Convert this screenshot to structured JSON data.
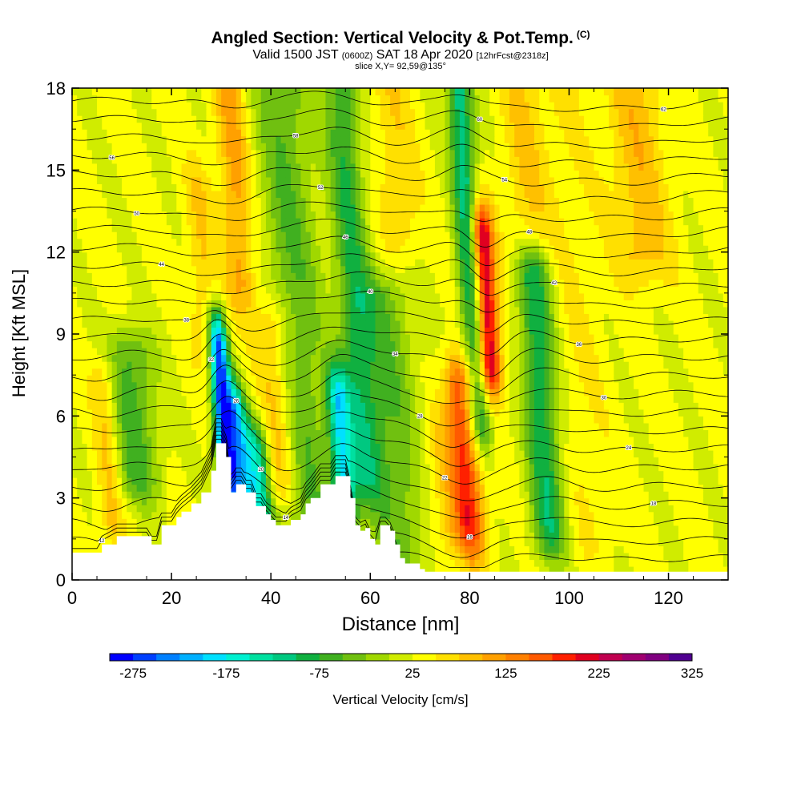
{
  "title": {
    "main": "Angled Section: Vertical Velocity & Pot.Temp.",
    "main_tag": "(C)",
    "valid_prefix": "Valid 1500 JST",
    "valid_utc": "(0600Z)",
    "valid_date": "SAT 18 Apr 2020",
    "forecast": "[12hrFcst@2318z]",
    "slice": "slice X,Y= 92,59@135°"
  },
  "chart_data": {
    "type": "heatmap",
    "xlabel": "Distance [nm]",
    "ylabel": "Height [Kft MSL]",
    "xlim": [
      0,
      132
    ],
    "ylim": [
      0,
      18
    ],
    "x_ticks": [
      0,
      20,
      40,
      60,
      80,
      100,
      120
    ],
    "y_ticks": [
      0,
      3,
      6,
      9,
      12,
      15,
      18
    ],
    "colorbar": {
      "label": "Vertical Velocity [cm/s]",
      "tick_labels": [
        "-275",
        "-175",
        "-75",
        "25",
        "125",
        "225",
        "325"
      ],
      "min": -300,
      "max": 325,
      "step": 25,
      "colors": [
        "#0000ff",
        "#0040ff",
        "#0080ff",
        "#00b0ff",
        "#00e0ff",
        "#00f0d0",
        "#00e0a0",
        "#00c880",
        "#10b040",
        "#40b020",
        "#70c010",
        "#a0d800",
        "#d0ec00",
        "#ffff00",
        "#ffe000",
        "#ffc000",
        "#ffa000",
        "#ff8000",
        "#ff5a00",
        "#ff2000",
        "#e00020",
        "#c00050",
        "#a00070",
        "#800080",
        "#500090"
      ]
    },
    "background_w": 30,
    "velocity_features": [
      {
        "x": 31,
        "zmin": 4,
        "zmax": 8.5,
        "w": -270,
        "sx": 1.3
      },
      {
        "x": 34,
        "zmin": 3,
        "zmax": 6,
        "w": -180,
        "sx": 1.5
      },
      {
        "x": 38,
        "zmin": 2,
        "zmax": 4.5,
        "w": -150,
        "sx": 1.8
      },
      {
        "x": 55,
        "zmin": 2.5,
        "zmax": 6.5,
        "w": -160,
        "sx": 1.6
      },
      {
        "x": 59,
        "zmin": 4,
        "zmax": 18,
        "w": -75,
        "sx": 2.5
      },
      {
        "x": 82,
        "zmin": 6,
        "zmax": 18,
        "w": -120,
        "sx": 1.8
      },
      {
        "x": 96,
        "zmin": 2,
        "zmax": 11,
        "w": -95,
        "sx": 2.5
      },
      {
        "x": 13,
        "zmin": 4,
        "zmax": 8,
        "w": -60,
        "sx": 3.5
      },
      {
        "x": 48,
        "zmin": 1,
        "zmax": 18,
        "w": -50,
        "sx": 4
      },
      {
        "x": 66,
        "zmin": 1,
        "zmax": 10,
        "w": -45,
        "sx": 4
      },
      {
        "x": 84,
        "zmin": 8,
        "zmax": 12.5,
        "w": 260,
        "sx": 1.6
      },
      {
        "x": 80,
        "zmin": 2,
        "zmax": 7,
        "w": 185,
        "sx": 2.2
      },
      {
        "x": 34,
        "zmin": 11,
        "zmax": 18,
        "w": 110,
        "sx": 2.2
      },
      {
        "x": 42,
        "zmin": 4,
        "zmax": 9,
        "w": 110,
        "sx": 2.5
      },
      {
        "x": 8,
        "zmin": 2.5,
        "zmax": 7,
        "w": 90,
        "sx": 1.8
      },
      {
        "x": 27,
        "zmin": 9,
        "zmax": 14,
        "w": 75,
        "sx": 2
      },
      {
        "x": 115,
        "zmin": 12,
        "zmax": 18,
        "w": 90,
        "sx": 4
      },
      {
        "x": 92,
        "zmin": 13,
        "zmax": 18,
        "w": 75,
        "sx": 3
      },
      {
        "x": 66,
        "zmin": 13,
        "zmax": 18,
        "w": 70,
        "sx": 3
      },
      {
        "x": 75,
        "zmin": 2,
        "zmax": 5,
        "w": 70,
        "sx": 2.5
      },
      {
        "x": 104,
        "zmin": 2,
        "zmax": 18,
        "w": 50,
        "sx": 4
      }
    ],
    "terrain_kft": [
      [
        0,
        1
      ],
      [
        5,
        1
      ],
      [
        6,
        1.3
      ],
      [
        9,
        1.6
      ],
      [
        15,
        1.6
      ],
      [
        16,
        1.3
      ],
      [
        17,
        1.3
      ],
      [
        18,
        2
      ],
      [
        20,
        2
      ],
      [
        21,
        2.3
      ],
      [
        22,
        2.5
      ],
      [
        24,
        2.8
      ],
      [
        26,
        3.2
      ],
      [
        28,
        4
      ],
      [
        29,
        5
      ],
      [
        30,
        5
      ],
      [
        31,
        4.5
      ],
      [
        32,
        3.2
      ],
      [
        33,
        3.5
      ],
      [
        34,
        3.5
      ],
      [
        35,
        3.2
      ],
      [
        36,
        3.2
      ],
      [
        37,
        2.7
      ],
      [
        38,
        2.7
      ],
      [
        39,
        2.4
      ],
      [
        40,
        2.2
      ],
      [
        41,
        2
      ],
      [
        43,
        2
      ],
      [
        44,
        2.2
      ],
      [
        46,
        2.4
      ],
      [
        47,
        2.8
      ],
      [
        48,
        3
      ],
      [
        50,
        3.5
      ],
      [
        52,
        3.5
      ],
      [
        53,
        3.8
      ],
      [
        55,
        3.8
      ],
      [
        56,
        3
      ],
      [
        57,
        2
      ],
      [
        58,
        1.8
      ],
      [
        59,
        1.9
      ],
      [
        60,
        1.5
      ],
      [
        61,
        1.3
      ],
      [
        62,
        2
      ],
      [
        63,
        2
      ],
      [
        64,
        1.8
      ],
      [
        65,
        1.3
      ],
      [
        66,
        0.8
      ],
      [
        67,
        0.6
      ],
      [
        68,
        0.6
      ],
      [
        70,
        0.4
      ],
      [
        71,
        0.3
      ],
      [
        132,
        0.3
      ]
    ],
    "theta_contours": {
      "count": 26,
      "base_kft": 0.8,
      "interval_kft": 0.67,
      "labels": [
        "12",
        "14",
        "16",
        "18",
        "20",
        "22",
        "24",
        "26",
        "28",
        "30",
        "32",
        "34",
        "36",
        "38",
        "40",
        "42",
        "44",
        "46",
        "48",
        "50",
        "52",
        "54",
        "56",
        "58",
        "60",
        "62"
      ]
    }
  }
}
